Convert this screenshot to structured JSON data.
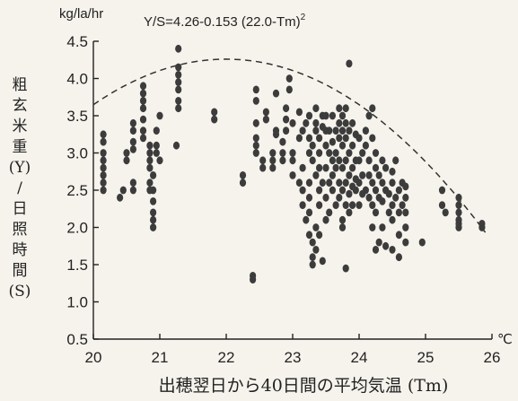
{
  "chart_data": {
    "type": "scatter",
    "title": "Y/S=4.26-0.153 (22.0-Tm)",
    "title_superscript": "2",
    "y_unit_label": "kg/la/hr",
    "x_unit_label": "℃",
    "xlabel": "出穂翌日から40日間の平均気温 (Tm)",
    "ylabel_lines": [
      "粗",
      "玄",
      "米",
      "重",
      "(Y)",
      "/",
      "日",
      "照",
      "時",
      "間",
      "(S)"
    ],
    "xlim": [
      20,
      26
    ],
    "ylim": [
      0.5,
      4.5
    ],
    "x_ticks": [
      {
        "value": 20,
        "label": "20"
      },
      {
        "value": 21,
        "label": "21"
      },
      {
        "value": 22,
        "label": "22"
      },
      {
        "value": 23,
        "label": "23"
      },
      {
        "value": 24,
        "label": "24"
      },
      {
        "value": 25,
        "label": "25"
      },
      {
        "value": 26,
        "label": "26"
      }
    ],
    "y_ticks": [
      {
        "value": 0.5,
        "label": "0.5"
      },
      {
        "value": 1.0,
        "label": "1.0"
      },
      {
        "value": 1.5,
        "label": "1.5"
      },
      {
        "value": 2.0,
        "label": "2.0"
      },
      {
        "value": 2.5,
        "label": "2.5"
      },
      {
        "value": 3.0,
        "label": "3.0"
      },
      {
        "value": 3.5,
        "label": "3.5"
      },
      {
        "value": 4.0,
        "label": "4.0"
      },
      {
        "value": 4.5,
        "label": "4.5"
      }
    ],
    "fit_curve": {
      "a": 4.26,
      "b": 0.153,
      "c": 22.0,
      "x_range": [
        20,
        25.9
      ],
      "style": "dashed"
    },
    "grid": false,
    "legend": "none",
    "points": [
      [
        20.15,
        2.5
      ],
      [
        20.15,
        2.6
      ],
      [
        20.15,
        2.7
      ],
      [
        20.15,
        2.8
      ],
      [
        20.15,
        2.9
      ],
      [
        20.15,
        3.0
      ],
      [
        20.15,
        3.15
      ],
      [
        20.15,
        3.25
      ],
      [
        20.4,
        2.4
      ],
      [
        20.45,
        2.5
      ],
      [
        20.5,
        2.9
      ],
      [
        20.5,
        3.0
      ],
      [
        20.6,
        2.5
      ],
      [
        20.6,
        2.6
      ],
      [
        20.6,
        3.05
      ],
      [
        20.6,
        3.15
      ],
      [
        20.6,
        3.3
      ],
      [
        20.6,
        3.4
      ],
      [
        20.75,
        3.2
      ],
      [
        20.75,
        3.3
      ],
      [
        20.75,
        3.45
      ],
      [
        20.75,
        3.6
      ],
      [
        20.75,
        3.7
      ],
      [
        20.75,
        3.8
      ],
      [
        20.75,
        3.9
      ],
      [
        20.85,
        2.5
      ],
      [
        20.85,
        2.6
      ],
      [
        20.85,
        2.8
      ],
      [
        20.85,
        2.9
      ],
      [
        20.85,
        3.0
      ],
      [
        20.85,
        3.1
      ],
      [
        20.9,
        2.0
      ],
      [
        20.9,
        2.1
      ],
      [
        20.9,
        2.2
      ],
      [
        20.9,
        2.35
      ],
      [
        20.9,
        2.5
      ],
      [
        20.9,
        2.7
      ],
      [
        20.95,
        3.0
      ],
      [
        20.95,
        3.1
      ],
      [
        20.95,
        3.3
      ],
      [
        21.0,
        3.5
      ],
      [
        21.0,
        2.9
      ],
      [
        21.25,
        3.1
      ],
      [
        21.28,
        3.6
      ],
      [
        21.28,
        3.7
      ],
      [
        21.28,
        3.85
      ],
      [
        21.28,
        3.95
      ],
      [
        21.28,
        4.05
      ],
      [
        21.28,
        4.15
      ],
      [
        21.28,
        4.4
      ],
      [
        21.82,
        3.45
      ],
      [
        21.82,
        3.55
      ],
      [
        22.25,
        2.6
      ],
      [
        22.25,
        2.7
      ],
      [
        22.4,
        1.3
      ],
      [
        22.4,
        1.35
      ],
      [
        22.45,
        3.85
      ],
      [
        22.45,
        3.7
      ],
      [
        22.45,
        3.4
      ],
      [
        22.45,
        3.2
      ],
      [
        22.45,
        3.1
      ],
      [
        22.45,
        3.0
      ],
      [
        22.55,
        2.8
      ],
      [
        22.55,
        2.9
      ],
      [
        22.6,
        3.55
      ],
      [
        22.6,
        3.45
      ],
      [
        22.7,
        3.0
      ],
      [
        22.7,
        2.9
      ],
      [
        22.7,
        2.8
      ],
      [
        22.75,
        3.8
      ],
      [
        22.75,
        3.3
      ],
      [
        22.75,
        3.25
      ],
      [
        22.85,
        3.15
      ],
      [
        22.85,
        3.0
      ],
      [
        22.85,
        2.9
      ],
      [
        22.9,
        3.6
      ],
      [
        22.9,
        3.45
      ],
      [
        22.9,
        3.3
      ],
      [
        22.95,
        4.0
      ],
      [
        22.95,
        3.85
      ],
      [
        23.0,
        2.7
      ],
      [
        23.0,
        2.9
      ],
      [
        23.0,
        3.0
      ],
      [
        23.0,
        3.4
      ],
      [
        23.1,
        2.6
      ],
      [
        23.1,
        3.2
      ],
      [
        23.1,
        3.55
      ],
      [
        23.15,
        2.3
      ],
      [
        23.15,
        2.5
      ],
      [
        23.15,
        2.8
      ],
      [
        23.15,
        3.3
      ],
      [
        23.2,
        2.1
      ],
      [
        23.2,
        3.4
      ],
      [
        23.25,
        1.9
      ],
      [
        23.25,
        2.2
      ],
      [
        23.25,
        2.4
      ],
      [
        23.25,
        2.6
      ],
      [
        23.25,
        3.0
      ],
      [
        23.25,
        3.2
      ],
      [
        23.25,
        3.5
      ],
      [
        23.3,
        1.5
      ],
      [
        23.3,
        1.6
      ],
      [
        23.3,
        1.8
      ],
      [
        23.3,
        2.9
      ],
      [
        23.3,
        3.1
      ],
      [
        23.35,
        1.7
      ],
      [
        23.35,
        2.0
      ],
      [
        23.35,
        2.7
      ],
      [
        23.35,
        3.3
      ],
      [
        23.35,
        3.4
      ],
      [
        23.35,
        3.6
      ],
      [
        23.4,
        1.9
      ],
      [
        23.4,
        2.3
      ],
      [
        23.4,
        2.5
      ],
      [
        23.4,
        2.8
      ],
      [
        23.4,
        3.0
      ],
      [
        23.4,
        3.2
      ],
      [
        23.45,
        1.55
      ],
      [
        23.45,
        2.6
      ],
      [
        23.45,
        3.35
      ],
      [
        23.45,
        3.5
      ],
      [
        23.5,
        2.1
      ],
      [
        23.5,
        2.4
      ],
      [
        23.5,
        2.8
      ],
      [
        23.5,
        3.1
      ],
      [
        23.5,
        3.3
      ],
      [
        23.5,
        3.5
      ],
      [
        23.55,
        2.2
      ],
      [
        23.55,
        2.6
      ],
      [
        23.55,
        3.0
      ],
      [
        23.55,
        3.3
      ],
      [
        23.6,
        2.5
      ],
      [
        23.6,
        2.7
      ],
      [
        23.6,
        2.9
      ],
      [
        23.6,
        3.15
      ],
      [
        23.6,
        3.5
      ],
      [
        23.65,
        2.3
      ],
      [
        23.65,
        2.8
      ],
      [
        23.65,
        3.0
      ],
      [
        23.65,
        3.3
      ],
      [
        23.7,
        2.4
      ],
      [
        23.7,
        2.6
      ],
      [
        23.7,
        2.9
      ],
      [
        23.7,
        3.2
      ],
      [
        23.7,
        3.4
      ],
      [
        23.7,
        3.6
      ],
      [
        23.75,
        2.0
      ],
      [
        23.75,
        2.1
      ],
      [
        23.75,
        2.5
      ],
      [
        23.75,
        2.8
      ],
      [
        23.75,
        3.1
      ],
      [
        23.75,
        3.3
      ],
      [
        23.75,
        3.5
      ],
      [
        23.8,
        1.45
      ],
      [
        23.8,
        2.3
      ],
      [
        23.8,
        2.6
      ],
      [
        23.8,
        2.9
      ],
      [
        23.8,
        3.2
      ],
      [
        23.8,
        3.4
      ],
      [
        23.8,
        3.6
      ],
      [
        23.85,
        2.2
      ],
      [
        23.85,
        2.45
      ],
      [
        23.85,
        2.7
      ],
      [
        23.85,
        3.0
      ],
      [
        23.85,
        3.3
      ],
      [
        23.85,
        4.2
      ],
      [
        23.9,
        2.3
      ],
      [
        23.9,
        2.55
      ],
      [
        23.9,
        2.8
      ],
      [
        23.9,
        3.1
      ],
      [
        23.9,
        3.4
      ],
      [
        23.95,
        2.5
      ],
      [
        23.95,
        2.65
      ],
      [
        23.95,
        2.9
      ],
      [
        23.95,
        3.25
      ],
      [
        24.0,
        2.3
      ],
      [
        24.0,
        2.6
      ],
      [
        24.0,
        2.9
      ],
      [
        24.0,
        3.2
      ],
      [
        24.05,
        2.45
      ],
      [
        24.05,
        2.7
      ],
      [
        24.05,
        3.0
      ],
      [
        24.1,
        2.5
      ],
      [
        24.1,
        3.1
      ],
      [
        24.1,
        3.3
      ],
      [
        24.15,
        2.4
      ],
      [
        24.15,
        2.7
      ],
      [
        24.15,
        2.9
      ],
      [
        24.15,
        3.5
      ],
      [
        24.2,
        2.0
      ],
      [
        24.2,
        2.3
      ],
      [
        24.2,
        2.6
      ],
      [
        24.2,
        3.2
      ],
      [
        24.2,
        3.6
      ],
      [
        24.25,
        1.7
      ],
      [
        24.25,
        2.2
      ],
      [
        24.25,
        2.5
      ],
      [
        24.25,
        2.8
      ],
      [
        24.25,
        3.0
      ],
      [
        24.3,
        1.8
      ],
      [
        24.3,
        2.4
      ],
      [
        24.3,
        2.7
      ],
      [
        24.35,
        2.0
      ],
      [
        24.35,
        2.35
      ],
      [
        24.35,
        2.6
      ],
      [
        24.35,
        2.9
      ],
      [
        24.4,
        1.75
      ],
      [
        24.4,
        2.5
      ],
      [
        24.4,
        2.8
      ],
      [
        24.45,
        2.2
      ],
      [
        24.45,
        2.45
      ],
      [
        24.5,
        1.7
      ],
      [
        24.5,
        2.1
      ],
      [
        24.5,
        2.3
      ],
      [
        24.5,
        2.6
      ],
      [
        24.5,
        2.75
      ],
      [
        24.55,
        2.4
      ],
      [
        24.55,
        2.9
      ],
      [
        24.6,
        1.6
      ],
      [
        24.6,
        1.9
      ],
      [
        24.6,
        2.2
      ],
      [
        24.6,
        2.5
      ],
      [
        24.65,
        2.3
      ],
      [
        24.65,
        2.6
      ],
      [
        24.7,
        1.8
      ],
      [
        24.7,
        2.0
      ],
      [
        24.7,
        2.2
      ],
      [
        24.7,
        2.4
      ],
      [
        24.7,
        2.55
      ],
      [
        24.95,
        1.8
      ],
      [
        25.25,
        2.3
      ],
      [
        25.25,
        2.5
      ],
      [
        25.3,
        2.2
      ],
      [
        25.5,
        2.0
      ],
      [
        25.5,
        2.05
      ],
      [
        25.5,
        2.1
      ],
      [
        25.5,
        2.2
      ],
      [
        25.5,
        2.3
      ],
      [
        25.5,
        2.4
      ],
      [
        25.85,
        2.0
      ],
      [
        25.85,
        2.05
      ]
    ]
  }
}
